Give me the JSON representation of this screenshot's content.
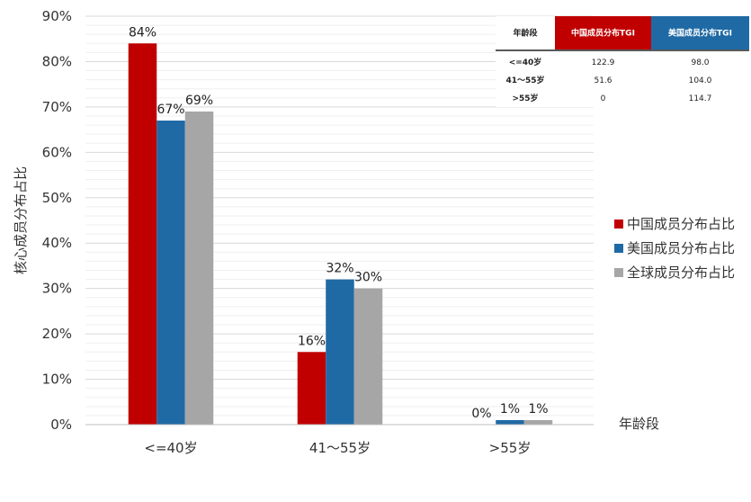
{
  "chart_data": {
    "type": "bar",
    "categories": [
      "<=40岁",
      "41～55岁",
      ">55岁"
    ],
    "series": [
      {
        "name": "中国成员分布占比",
        "color": "#c00000",
        "values": [
          84,
          16,
          0
        ],
        "labels": [
          "84%",
          "16%",
          "0%"
        ]
      },
      {
        "name": "美国成员分布占比",
        "color": "#1f6aa5",
        "values": [
          67,
          32,
          1
        ],
        "labels": [
          "67%",
          "32%",
          "1%"
        ]
      },
      {
        "name": "全球成员分布占比",
        "color": "#a6a6a6",
        "values": [
          69,
          30,
          1
        ],
        "labels": [
          "69%",
          "30%",
          "1%"
        ]
      }
    ],
    "yticks": [
      "0%",
      "10%",
      "20%",
      "30%",
      "40%",
      "50%",
      "60%",
      "70%",
      "80%",
      "90%"
    ],
    "ylim": [
      0,
      90
    ],
    "ylabel": "核心成员分布占比",
    "xlabel": "年龄段",
    "legend_position": "right",
    "grid": true
  },
  "tgi_table": {
    "headers": [
      "年龄段",
      "中国成员分布TGI",
      "美国成员分布TGI"
    ],
    "header_colors": [
      "#ffffff",
      "#c00000",
      "#1f6aa5"
    ],
    "rows": [
      [
        "<=40岁",
        "122.9",
        "98.0"
      ],
      [
        "41～55岁",
        "51.6",
        "104.0"
      ],
      [
        ">55岁",
        "0",
        "114.7"
      ]
    ],
    "highlight_color": "#c00000"
  }
}
